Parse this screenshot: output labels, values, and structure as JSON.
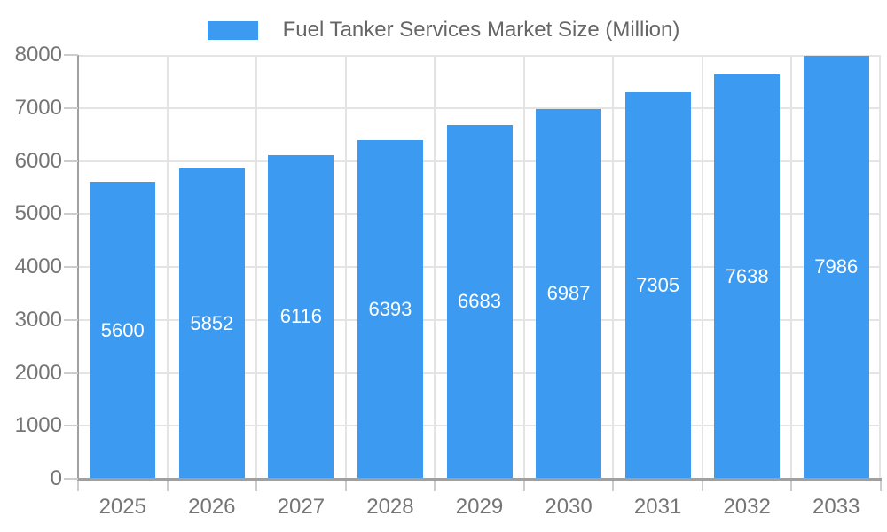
{
  "chart_data": {
    "type": "bar",
    "title": "Fuel Tanker Services Market Size (Million)",
    "legend_position": "top",
    "categories": [
      "2025",
      "2026",
      "2027",
      "2028",
      "2029",
      "2030",
      "2031",
      "2032",
      "2033"
    ],
    "values": [
      5600,
      5852,
      6116,
      6393,
      6683,
      6987,
      7305,
      7638,
      7986
    ],
    "xlabel": "",
    "ylabel": "",
    "ylim": [
      0,
      8000
    ],
    "ytick_step": 1000,
    "y_tick_labels": [
      "0",
      "1000",
      "2000",
      "3000",
      "4000",
      "5000",
      "6000",
      "7000",
      "8000"
    ],
    "grid": true,
    "colors": {
      "bar": "#3C9BF0",
      "grid": "#E4E4E4",
      "axis": "#A0A0A0",
      "tick": "#CDCDCD",
      "axis_label": "#757575",
      "legend_label": "#666666",
      "value_label": "#FFFFFF",
      "background": "#FFFFFF"
    }
  }
}
